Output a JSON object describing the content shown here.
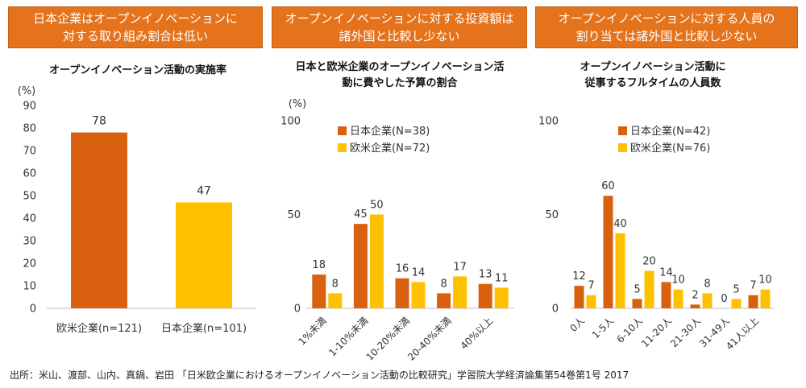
{
  "headers": [
    {
      "lines": [
        "日本企業はオープンイノベーションに",
        "対する取り組み割合は低い"
      ]
    },
    {
      "lines": [
        "オープンイノベーションに対する投資額は",
        "諸外国と比較し少ない"
      ]
    },
    {
      "lines": [
        "オープンイノベーションに対する人員の",
        "割り当ては諸外国と比較し少ない"
      ]
    }
  ],
  "colors": {
    "header_bg": "#E5731C",
    "header_border": "#C65E12",
    "header_text": "#FFFFFF",
    "axis": "#BFBFBF"
  },
  "chart_data": [
    {
      "type": "bar",
      "title": [
        "オープンイノベーション活動の実施率"
      ],
      "ylabel": "(%)",
      "ylim": [
        0,
        90
      ],
      "yticks": [
        0,
        10,
        20,
        30,
        40,
        50,
        60,
        70,
        80,
        90
      ],
      "grid": false,
      "categories": [
        "欧米企業(n=121)",
        "日本企業(n=101)"
      ],
      "values": [
        78,
        47
      ],
      "bar_colors": [
        "#D9600F",
        "#FFC000"
      ]
    },
    {
      "type": "bar",
      "title": [
        "日本と欧米企業のオープンイノベーション活",
        "動に費やした予算の割合"
      ],
      "ylabel": "(%)",
      "ylim": [
        0,
        100
      ],
      "yticks": [
        0,
        50,
        100
      ],
      "grid": false,
      "categories": [
        "1%未満",
        "1-10%未満",
        "10-20%未満",
        "20-40%未満",
        "40%以上"
      ],
      "series": [
        {
          "name": "日本企業(N=38)",
          "values": [
            18,
            45,
            16,
            8,
            13
          ],
          "color": "#D9600F"
        },
        {
          "name": "欧米企業(N=72)",
          "values": [
            8,
            50,
            14,
            17,
            11
          ],
          "color": "#FFC000"
        }
      ],
      "legend": "top-left"
    },
    {
      "type": "bar",
      "title": [
        "オープンイノベーション活動に",
        "従事するフルタイムの人員数"
      ],
      "ylim": [
        0,
        100
      ],
      "yticks": [
        0,
        50,
        100
      ],
      "grid": false,
      "categories": [
        "0人",
        "1-5人",
        "6-10人",
        "11-20人",
        "21-30人",
        "31-49人",
        "41人以上"
      ],
      "series": [
        {
          "name": "日本企業(N=42)",
          "values": [
            12,
            60,
            5,
            14,
            2,
            0,
            7
          ],
          "color": "#D9600F"
        },
        {
          "name": "欧米企業(N=76)",
          "values": [
            7,
            40,
            20,
            10,
            8,
            5,
            10
          ],
          "color": "#FFC000"
        }
      ],
      "legend": "top-left"
    }
  ],
  "source": "出所：米山、渡部、山内、真鍋、岩田 「日米欧企業におけるオープンイノベーション活動の比較研究」学習院大学経済論集第54巻第1号 2017"
}
